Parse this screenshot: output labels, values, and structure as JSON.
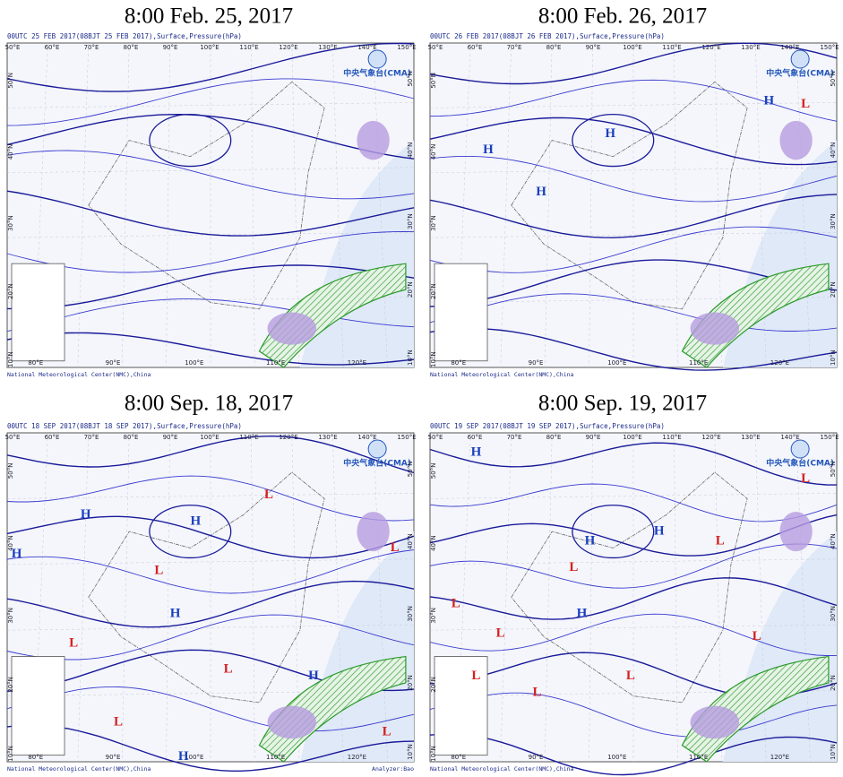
{
  "axes": {
    "lon_labels_top": [
      "50°E",
      "60°E",
      "70°E",
      "80°E",
      "90°E",
      "100°E",
      "110°E",
      "120°E",
      "130°E",
      "140°E",
      "150°E"
    ],
    "lon_labels_bottom": [
      "80°E",
      "90°E",
      "100°E",
      "110°E",
      "120°E"
    ],
    "lat_labels": [
      "10°N",
      "20°N",
      "30°N",
      "40°N",
      "50°N"
    ]
  },
  "logo": "中央气象台(CMA)",
  "footer": "National Meteorological Center(NMC),China",
  "panels": [
    {
      "title": "8:00 Feb. 25, 2017",
      "header": "00UTC 25  FEB 2017(08BJT 25  FEB 2017),Surface,Pressure(hPa)",
      "symbols": []
    },
    {
      "title": "8:00 Feb. 26, 2017",
      "header": "00UTC 26  FEB 2017(08BJT 26  FEB 2017),Surface,Pressure(hPa)",
      "symbols": [
        "H",
        "H",
        "H",
        "H",
        "L"
      ]
    },
    {
      "title": "8:00 Sep. 18, 2017",
      "header": "00UTC 18  SEP 2017(08BJT 18  SEP 2017),Surface,Pressure(hPa)",
      "symbols": [
        "H",
        "H",
        "H",
        "H",
        "H",
        "H",
        "L",
        "L",
        "L",
        "L",
        "L",
        "L",
        "L"
      ],
      "analyzer": "Analyzer:Bao"
    },
    {
      "title": "8:00 Sep. 19, 2017",
      "header": "00UTC 19  SEP 2017(08BJT 19  SEP 2017),Surface,Pressure(hPa)",
      "symbols": [
        "H",
        "H",
        "H",
        "H",
        "L",
        "L",
        "L",
        "L",
        "L",
        "L",
        "L",
        "L",
        "L"
      ]
    }
  ]
}
